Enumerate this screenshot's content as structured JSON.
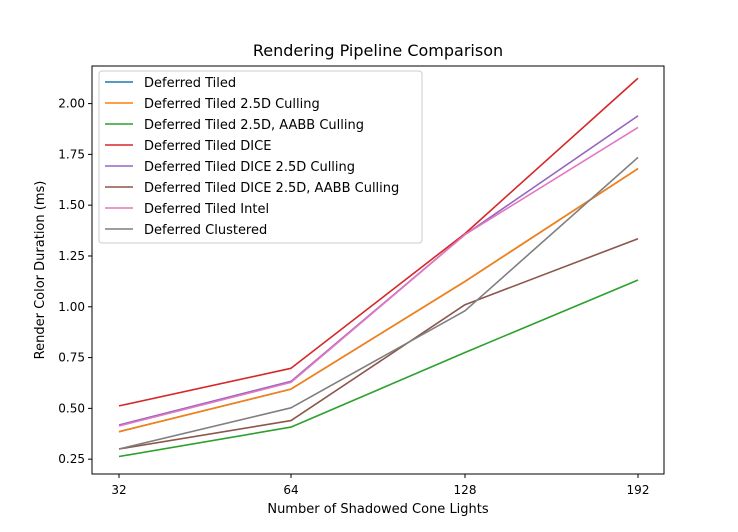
{
  "chart_data": {
    "type": "line",
    "title": "Rendering Pipeline Comparison",
    "xlabel": "Number of Shadowed Cone Lights",
    "ylabel": "Render Color Duration (ms)",
    "x": [
      32,
      64,
      128,
      192
    ],
    "xticks": [
      "32",
      "64",
      "128",
      "192"
    ],
    "yticks": [
      "0.25",
      "0.50",
      "0.75",
      "1.00",
      "1.25",
      "1.50",
      "1.75",
      "2.00"
    ],
    "ylim": [
      0.177,
      2.185
    ],
    "grid": false,
    "legend_position": "upper-left",
    "series": [
      {
        "name": "Deferred Tiled",
        "color": "#1f77b4",
        "values": [
          0.385,
          0.595,
          1.125,
          1.68
        ]
      },
      {
        "name": "Deferred Tiled 2.5D Culling",
        "color": "#ff7f0e",
        "values": [
          0.385,
          0.595,
          1.125,
          1.68
        ]
      },
      {
        "name": "Deferred Tiled 2.5D, AABB Culling",
        "color": "#2ca02c",
        "values": [
          0.263,
          0.408,
          0.775,
          1.132
        ]
      },
      {
        "name": "Deferred Tiled DICE",
        "color": "#d62728",
        "values": [
          0.512,
          0.697,
          1.36,
          2.125
        ]
      },
      {
        "name": "Deferred Tiled DICE 2.5D Culling",
        "color": "#9467bd",
        "values": [
          0.418,
          0.633,
          1.355,
          1.94
        ]
      },
      {
        "name": "Deferred Tiled DICE 2.5D, AABB Culling",
        "color": "#8c564b",
        "values": [
          0.3,
          0.44,
          1.01,
          1.335
        ]
      },
      {
        "name": "Deferred Tiled Intel",
        "color": "#e377c2",
        "values": [
          0.413,
          0.628,
          1.355,
          1.883
        ]
      },
      {
        "name": "Deferred Clustered",
        "color": "#7f7f7f",
        "values": [
          0.3,
          0.503,
          0.98,
          1.735
        ]
      }
    ]
  }
}
